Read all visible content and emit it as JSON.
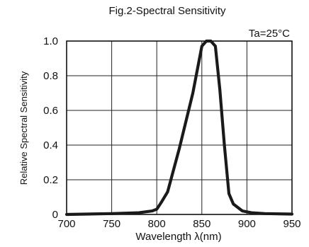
{
  "chart_data": {
    "type": "line",
    "title": "Fig.2-Spectral Sensitivity",
    "annotation": "Ta=25°C",
    "xlabel": "Wavelength  λ(nm)",
    "ylabel": "Relative Spectral Sensitivity",
    "xlim": [
      700,
      950
    ],
    "ylim": [
      0,
      1.0
    ],
    "x_ticks": [
      "700",
      "750",
      "800",
      "850",
      "900",
      "950"
    ],
    "y_ticks": [
      "0",
      "0.2",
      "0.4",
      "0.6",
      "0.8",
      "1.0"
    ],
    "grid": true,
    "series": [
      {
        "x": [
          700,
          750,
          780,
          795,
          800,
          805,
          812,
          825,
          840,
          850,
          855,
          860,
          865,
          870,
          875,
          880,
          885,
          895,
          905,
          920,
          950
        ],
        "values": [
          0.0,
          0.005,
          0.01,
          0.02,
          0.03,
          0.07,
          0.13,
          0.38,
          0.7,
          0.97,
          1.0,
          1.0,
          0.97,
          0.72,
          0.4,
          0.12,
          0.06,
          0.02,
          0.01,
          0.005,
          0.002
        ]
      }
    ]
  }
}
